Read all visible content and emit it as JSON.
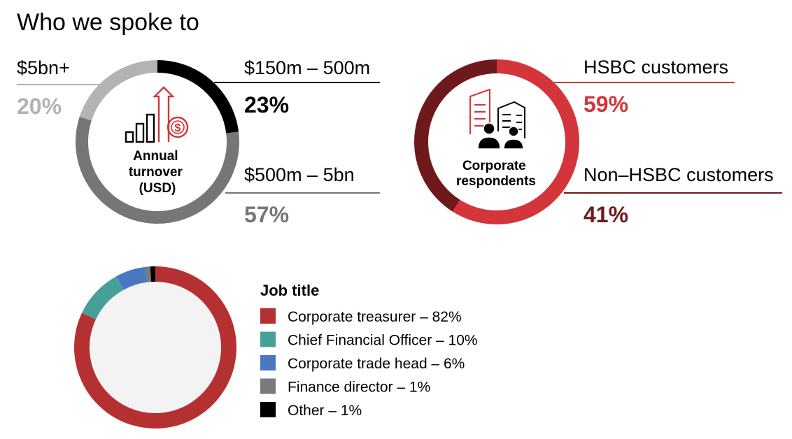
{
  "title": "Who we spoke to",
  "chart_data": [
    {
      "type": "pie",
      "variant": "donut",
      "center_label": [
        "Annual",
        "turnover",
        "(USD)"
      ],
      "icon": "bar-growth-dollar-icon",
      "slices": [
        {
          "label": "$150m – 500m",
          "value": 23,
          "display": "23%",
          "color": "#000000",
          "label_color": "#000000"
        },
        {
          "label": "$500m – 5bn",
          "value": 57,
          "display": "57%",
          "color": "#767676",
          "label_color": "#767676"
        },
        {
          "label": "$5bn+",
          "value": 20,
          "display": "20%",
          "color": "#b3b3b3",
          "label_color": "#b3b3b3"
        }
      ]
    },
    {
      "type": "pie",
      "variant": "donut",
      "center_label": [
        "Corporate",
        "respondents"
      ],
      "icon": "corporate-buildings-people-icon",
      "slices": [
        {
          "label": "HSBC customers",
          "value": 59,
          "display": "59%",
          "color": "#d3353a",
          "label_color": "#d3353a"
        },
        {
          "label": "Non–HSBC customers",
          "value": 41,
          "display": "41%",
          "color": "#6e1a1c",
          "label_color": "#6e1a1c"
        }
      ]
    },
    {
      "type": "pie",
      "variant": "donut",
      "legend_title": "Job title",
      "slices": [
        {
          "label": "Corporate treasurer – 82%",
          "value": 82,
          "color": "#b53131"
        },
        {
          "label": "Chief Financial Officer – 10%",
          "value": 10,
          "color": "#46a097"
        },
        {
          "label": "Corporate trade head – 6%",
          "value": 6,
          "color": "#4a77c2"
        },
        {
          "label": "Finance director – 1%",
          "value": 1,
          "color": "#7a7a7a"
        },
        {
          "label": "Other – 1%",
          "value": 1,
          "color": "#000000"
        }
      ]
    }
  ]
}
